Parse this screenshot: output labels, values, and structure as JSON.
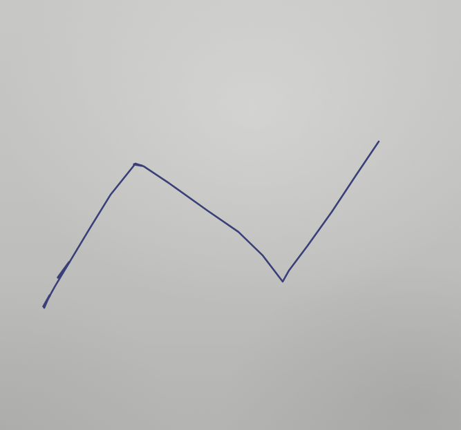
{
  "photo": {
    "subject": "hand-drawn-zigzag-line",
    "paper_color": "#c3c3c1",
    "ink_color": "#3b3f78"
  }
}
